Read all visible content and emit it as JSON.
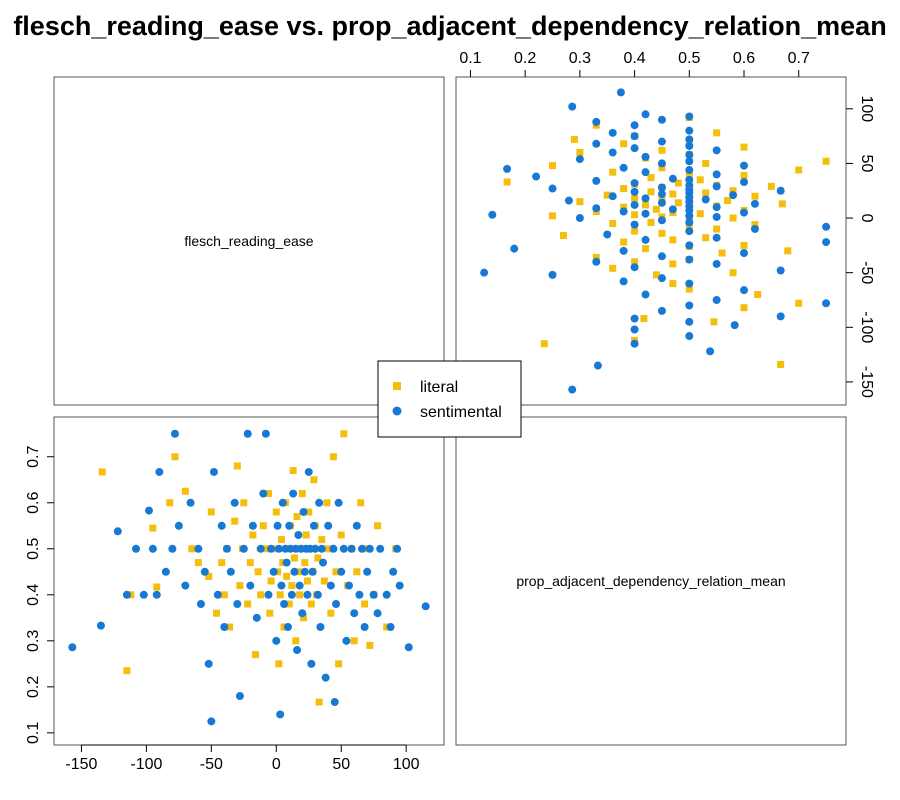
{
  "chart_data": {
    "type": "scatter",
    "title": "flesch_reading_ease vs. prop_adjacent_dependency_relation_mean",
    "variables": [
      "flesch_reading_ease",
      "prop_adjacent_dependency_relation_mean"
    ],
    "axes": {
      "flesch_reading_ease": {
        "range": [
          -160,
          118
        ],
        "ticks": [
          -150,
          -100,
          -50,
          0,
          50,
          100
        ],
        "tick_labels": [
          "-150",
          "-100",
          "-50",
          "0",
          "50",
          "100"
        ]
      },
      "prop_adjacent_dependency_relation_mean": {
        "range": [
          0.1,
          0.76
        ],
        "ticks": [
          0.1,
          0.2,
          0.3,
          0.4,
          0.5,
          0.6,
          0.7
        ],
        "tick_labels": [
          "0.1",
          "0.2",
          "0.3",
          "0.4",
          "0.5",
          "0.6",
          "0.7"
        ]
      }
    },
    "legend": {
      "placement": "center",
      "entries": [
        {
          "name": "literal",
          "color": "#F5BE0B",
          "marker": "square"
        },
        {
          "name": "sentimental",
          "color": "#1879D4",
          "marker": "circle"
        }
      ]
    },
    "series": [
      {
        "name": "literal",
        "color": "#F5BE0B",
        "marker": "square",
        "points": [
          {
            "x": -134,
            "y": 0.667
          },
          {
            "x": -115,
            "y": 0.235
          },
          {
            "x": -112,
            "y": 0.4
          },
          {
            "x": -95,
            "y": 0.545
          },
          {
            "x": -92,
            "y": 0.417
          },
          {
            "x": -82,
            "y": 0.6
          },
          {
            "x": -78,
            "y": 0.7
          },
          {
            "x": -70,
            "y": 0.625
          },
          {
            "x": -65,
            "y": 0.5
          },
          {
            "x": -60,
            "y": 0.47
          },
          {
            "x": -52,
            "y": 0.44
          },
          {
            "x": -50,
            "y": 0.58
          },
          {
            "x": -46,
            "y": 0.36
          },
          {
            "x": -42,
            "y": 0.47
          },
          {
            "x": -40,
            "y": 0.4
          },
          {
            "x": -38,
            "y": 0.5
          },
          {
            "x": -36,
            "y": 0.33
          },
          {
            "x": -32,
            "y": 0.56
          },
          {
            "x": -30,
            "y": 0.68
          },
          {
            "x": -28,
            "y": 0.42
          },
          {
            "x": -26,
            "y": 0.5
          },
          {
            "x": -25,
            "y": 0.6
          },
          {
            "x": -22,
            "y": 0.38
          },
          {
            "x": -20,
            "y": 0.47
          },
          {
            "x": -18,
            "y": 0.53
          },
          {
            "x": -16,
            "y": 0.27
          },
          {
            "x": -14,
            "y": 0.45
          },
          {
            "x": -12,
            "y": 0.4
          },
          {
            "x": -10,
            "y": 0.55
          },
          {
            "x": -8,
            "y": 0.5
          },
          {
            "x": -6,
            "y": 0.62
          },
          {
            "x": -5,
            "y": 0.36
          },
          {
            "x": -4,
            "y": 0.43
          },
          {
            "x": -2,
            "y": 0.5
          },
          {
            "x": 0,
            "y": 0.58
          },
          {
            "x": 1,
            "y": 0.45
          },
          {
            "x": 2,
            "y": 0.25
          },
          {
            "x": 3,
            "y": 0.4
          },
          {
            "x": 4,
            "y": 0.52
          },
          {
            "x": 5,
            "y": 0.47
          },
          {
            "x": 6,
            "y": 0.33
          },
          {
            "x": 7,
            "y": 0.6
          },
          {
            "x": 8,
            "y": 0.44
          },
          {
            "x": 9,
            "y": 0.5
          },
          {
            "x": 10,
            "y": 0.38
          },
          {
            "x": 11,
            "y": 0.55
          },
          {
            "x": 12,
            "y": 0.42
          },
          {
            "x": 13,
            "y": 0.67
          },
          {
            "x": 14,
            "y": 0.48
          },
          {
            "x": 15,
            "y": 0.3
          },
          {
            "x": 16,
            "y": 0.57
          },
          {
            "x": 17,
            "y": 0.45
          },
          {
            "x": 18,
            "y": 0.4
          },
          {
            "x": 19,
            "y": 0.5
          },
          {
            "x": 20,
            "y": 0.62
          },
          {
            "x": 21,
            "y": 0.35
          },
          {
            "x": 22,
            "y": 0.47
          },
          {
            "x": 23,
            "y": 0.53
          },
          {
            "x": 24,
            "y": 0.43
          },
          {
            "x": 25,
            "y": 0.58
          },
          {
            "x": 26,
            "y": 0.5
          },
          {
            "x": 27,
            "y": 0.38
          },
          {
            "x": 28,
            "y": 0.45
          },
          {
            "x": 29,
            "y": 0.65
          },
          {
            "x": 30,
            "y": 0.55
          },
          {
            "x": 31,
            "y": 0.4
          },
          {
            "x": 32,
            "y": 0.48
          },
          {
            "x": 33,
            "y": 0.167
          },
          {
            "x": 35,
            "y": 0.52
          },
          {
            "x": 37,
            "y": 0.43
          },
          {
            "x": 39,
            "y": 0.6
          },
          {
            "x": 40,
            "y": 0.5
          },
          {
            "x": 42,
            "y": 0.36
          },
          {
            "x": 44,
            "y": 0.7
          },
          {
            "x": 46,
            "y": 0.45
          },
          {
            "x": 48,
            "y": 0.25
          },
          {
            "x": 50,
            "y": 0.53
          },
          {
            "x": 52,
            "y": 0.75
          },
          {
            "x": 55,
            "y": 0.42
          },
          {
            "x": 58,
            "y": 0.5
          },
          {
            "x": 60,
            "y": 0.3
          },
          {
            "x": 62,
            "y": 0.45
          },
          {
            "x": 65,
            "y": 0.6
          },
          {
            "x": 68,
            "y": 0.38
          },
          {
            "x": 70,
            "y": 0.5
          },
          {
            "x": 72,
            "y": 0.29
          },
          {
            "x": 75,
            "y": 0.4
          },
          {
            "x": 78,
            "y": 0.55
          },
          {
            "x": 85,
            "y": 0.33
          },
          {
            "x": 92,
            "y": 0.5
          }
        ]
      },
      {
        "name": "sentimental",
        "color": "#1879D4",
        "marker": "circle",
        "points": [
          {
            "x": -157,
            "y": 0.286
          },
          {
            "x": -135,
            "y": 0.333
          },
          {
            "x": -122,
            "y": 0.538
          },
          {
            "x": -115,
            "y": 0.4
          },
          {
            "x": -108,
            "y": 0.5
          },
          {
            "x": -102,
            "y": 0.4
          },
          {
            "x": -98,
            "y": 0.583
          },
          {
            "x": -95,
            "y": 0.5
          },
          {
            "x": -92,
            "y": 0.4
          },
          {
            "x": -90,
            "y": 0.667
          },
          {
            "x": -85,
            "y": 0.45
          },
          {
            "x": -80,
            "y": 0.5
          },
          {
            "x": -78,
            "y": 0.75
          },
          {
            "x": -75,
            "y": 0.55
          },
          {
            "x": -70,
            "y": 0.42
          },
          {
            "x": -66,
            "y": 0.6
          },
          {
            "x": -60,
            "y": 0.5
          },
          {
            "x": -58,
            "y": 0.38
          },
          {
            "x": -55,
            "y": 0.45
          },
          {
            "x": -52,
            "y": 0.25
          },
          {
            "x": -50,
            "y": 0.125
          },
          {
            "x": -48,
            "y": 0.667
          },
          {
            "x": -45,
            "y": 0.4
          },
          {
            "x": -42,
            "y": 0.55
          },
          {
            "x": -40,
            "y": 0.33
          },
          {
            "x": -38,
            "y": 0.5
          },
          {
            "x": -35,
            "y": 0.45
          },
          {
            "x": -32,
            "y": 0.6
          },
          {
            "x": -30,
            "y": 0.38
          },
          {
            "x": -28,
            "y": 0.18
          },
          {
            "x": -25,
            "y": 0.5
          },
          {
            "x": -22,
            "y": 0.75
          },
          {
            "x": -20,
            "y": 0.42
          },
          {
            "x": -18,
            "y": 0.55
          },
          {
            "x": -15,
            "y": 0.35
          },
          {
            "x": -12,
            "y": 0.5
          },
          {
            "x": -10,
            "y": 0.62
          },
          {
            "x": -8,
            "y": 0.75
          },
          {
            "x": -6,
            "y": 0.4
          },
          {
            "x": -4,
            "y": 0.5
          },
          {
            "x": -2,
            "y": 0.45
          },
          {
            "x": 0,
            "y": 0.3
          },
          {
            "x": 1,
            "y": 0.55
          },
          {
            "x": 2,
            "y": 0.5
          },
          {
            "x": 3,
            "y": 0.14
          },
          {
            "x": 4,
            "y": 0.42
          },
          {
            "x": 5,
            "y": 0.6
          },
          {
            "x": 6,
            "y": 0.38
          },
          {
            "x": 7,
            "y": 0.5
          },
          {
            "x": 8,
            "y": 0.47
          },
          {
            "x": 9,
            "y": 0.33
          },
          {
            "x": 10,
            "y": 0.55
          },
          {
            "x": 11,
            "y": 0.5
          },
          {
            "x": 12,
            "y": 0.4
          },
          {
            "x": 13,
            "y": 0.62
          },
          {
            "x": 14,
            "y": 0.45
          },
          {
            "x": 15,
            "y": 0.5
          },
          {
            "x": 16,
            "y": 0.28
          },
          {
            "x": 17,
            "y": 0.53
          },
          {
            "x": 18,
            "y": 0.42
          },
          {
            "x": 19,
            "y": 0.5
          },
          {
            "x": 20,
            "y": 0.36
          },
          {
            "x": 21,
            "y": 0.58
          },
          {
            "x": 22,
            "y": 0.45
          },
          {
            "x": 23,
            "y": 0.5
          },
          {
            "x": 24,
            "y": 0.4
          },
          {
            "x": 25,
            "y": 0.667
          },
          {
            "x": 26,
            "y": 0.5
          },
          {
            "x": 27,
            "y": 0.25
          },
          {
            "x": 28,
            "y": 0.45
          },
          {
            "x": 29,
            "y": 0.55
          },
          {
            "x": 30,
            "y": 0.5
          },
          {
            "x": 32,
            "y": 0.4
          },
          {
            "x": 33,
            "y": 0.6
          },
          {
            "x": 34,
            "y": 0.33
          },
          {
            "x": 35,
            "y": 0.5
          },
          {
            "x": 36,
            "y": 0.47
          },
          {
            "x": 38,
            "y": 0.22
          },
          {
            "x": 40,
            "y": 0.55
          },
          {
            "x": 42,
            "y": 0.42
          },
          {
            "x": 44,
            "y": 0.5
          },
          {
            "x": 45,
            "y": 0.167
          },
          {
            "x": 46,
            "y": 0.38
          },
          {
            "x": 48,
            "y": 0.6
          },
          {
            "x": 50,
            "y": 0.45
          },
          {
            "x": 52,
            "y": 0.5
          },
          {
            "x": 54,
            "y": 0.3
          },
          {
            "x": 56,
            "y": 0.42
          },
          {
            "x": 58,
            "y": 0.5
          },
          {
            "x": 60,
            "y": 0.36
          },
          {
            "x": 62,
            "y": 0.55
          },
          {
            "x": 64,
            "y": 0.4
          },
          {
            "x": 66,
            "y": 0.5
          },
          {
            "x": 68,
            "y": 0.33
          },
          {
            "x": 70,
            "y": 0.45
          },
          {
            "x": 72,
            "y": 0.5
          },
          {
            "x": 75,
            "y": 0.4
          },
          {
            "x": 78,
            "y": 0.36
          },
          {
            "x": 80,
            "y": 0.5
          },
          {
            "x": 85,
            "y": 0.4
          },
          {
            "x": 88,
            "y": 0.33
          },
          {
            "x": 90,
            "y": 0.45
          },
          {
            "x": 93,
            "y": 0.5
          },
          {
            "x": 95,
            "y": 0.42
          },
          {
            "x": 102,
            "y": 0.286
          },
          {
            "x": 115,
            "y": 0.375
          }
        ]
      }
    ]
  }
}
